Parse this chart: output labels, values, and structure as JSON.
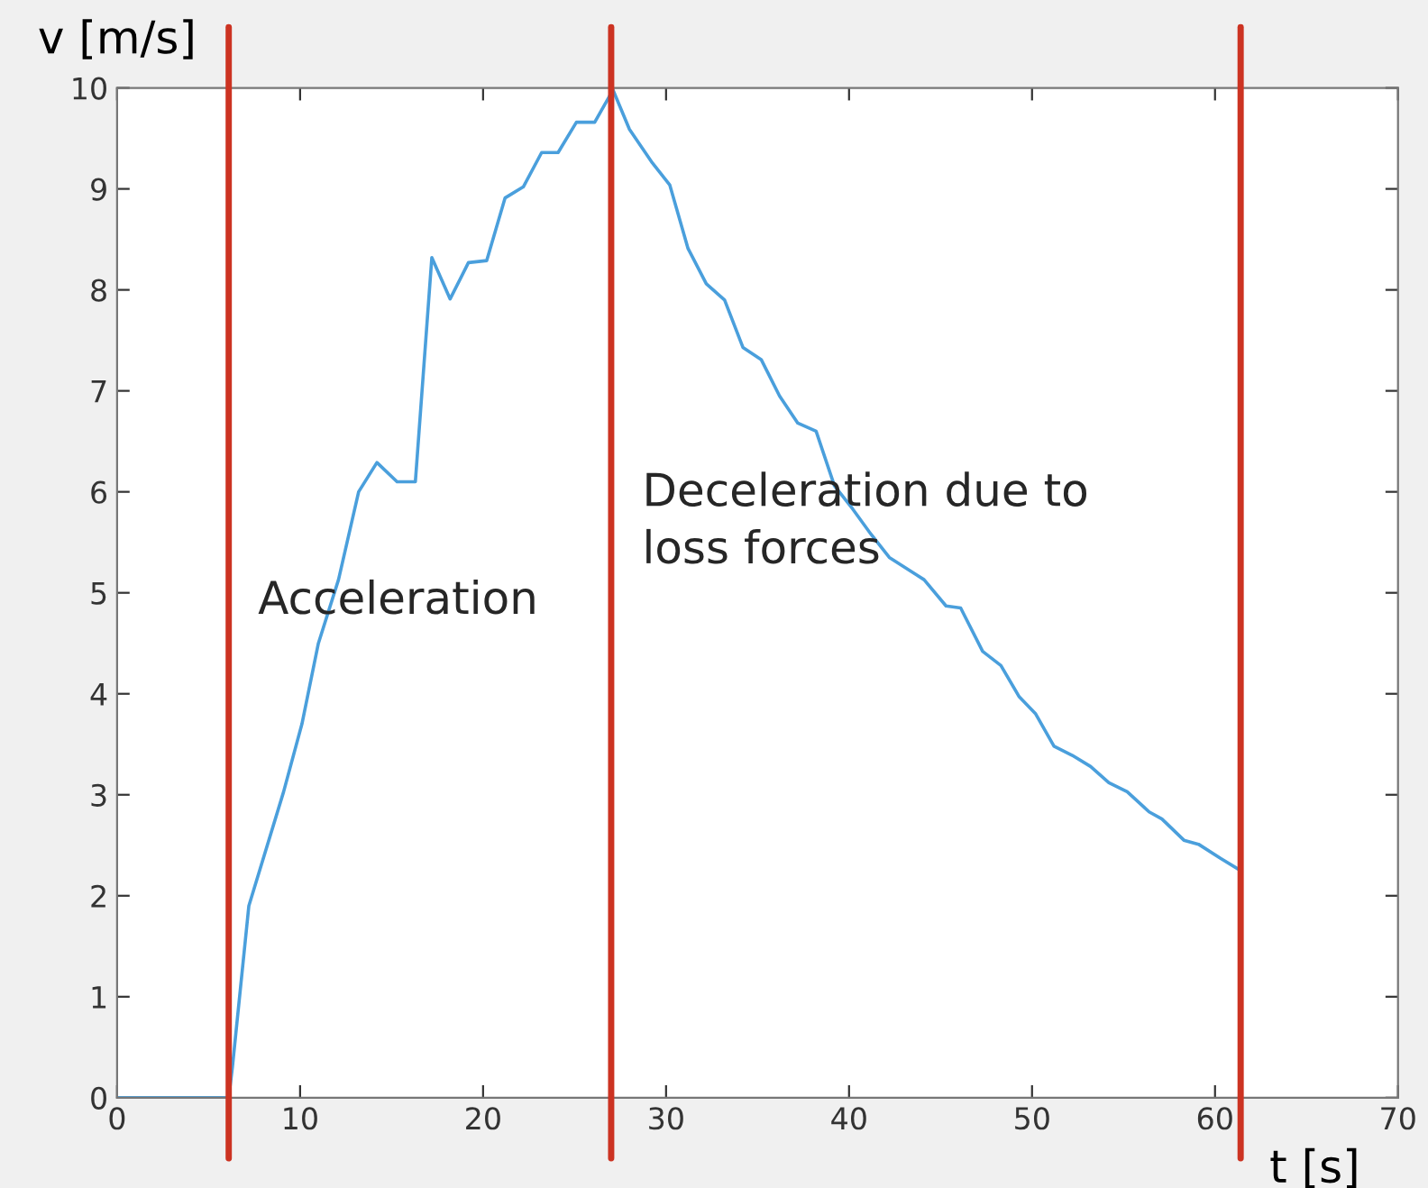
{
  "chart_data": {
    "type": "line",
    "xlabel": "t [s]",
    "ylabel": "v [m/s]",
    "x": [
      0,
      6.1,
      6.3,
      7.2,
      9.1,
      10.1,
      11.0,
      12.1,
      13.2,
      14.2,
      15.3,
      16.3,
      17.2,
      18.2,
      19.2,
      20.2,
      21.2,
      22.2,
      23.2,
      24.1,
      25.1,
      26.1,
      27.1,
      28.0,
      29.2,
      30.2,
      31.2,
      32.2,
      33.2,
      34.2,
      35.2,
      36.2,
      37.2,
      38.2,
      39.2,
      40.2,
      41.2,
      42.2,
      44.1,
      45.3,
      46.1,
      47.3,
      48.3,
      49.3,
      50.2,
      51.2,
      52.2,
      53.2,
      54.2,
      55.2,
      56.4,
      57.1,
      58.3,
      59.1,
      60.3,
      61.3
    ],
    "series": [
      {
        "color": "#4a9fdc",
        "values": [
          0,
          0,
          0.3,
          1.9,
          3.03,
          3.7,
          4.5,
          5.13,
          6.0,
          6.29,
          6.1,
          6.1,
          8.32,
          7.91,
          8.27,
          8.29,
          8.91,
          9.02,
          9.36,
          9.36,
          9.66,
          9.66,
          9.98,
          9.59,
          9.27,
          9.04,
          8.41,
          8.06,
          7.9,
          7.43,
          7.31,
          6.95,
          6.68,
          6.6,
          6.06,
          5.83,
          5.58,
          5.35,
          5.13,
          4.87,
          4.85,
          4.42,
          4.28,
          3.97,
          3.8,
          3.48,
          3.39,
          3.28,
          3.12,
          3.03,
          2.83,
          2.76,
          2.55,
          2.51,
          2.37,
          2.26
        ]
      }
    ],
    "xlim": [
      0,
      70
    ],
    "xticks": [
      0,
      10,
      20,
      30,
      40,
      50,
      60,
      70
    ],
    "ylim": [
      0,
      10
    ],
    "yticks": [
      0,
      1,
      2,
      3,
      4,
      5,
      6,
      7,
      8,
      9,
      10
    ],
    "ref_lines": [
      {
        "axis": "x",
        "value": 6.1,
        "color": "#cc3322"
      },
      {
        "axis": "x",
        "value": 27,
        "color": "#cc3322"
      },
      {
        "axis": "x",
        "value": 61.4,
        "color": "#cc3322"
      }
    ],
    "annotations": [
      "Acceleration",
      "Deceleration due to\nloss forces"
    ],
    "grid": false,
    "legend": false,
    "line_style": "solid",
    "marker": "none"
  }
}
